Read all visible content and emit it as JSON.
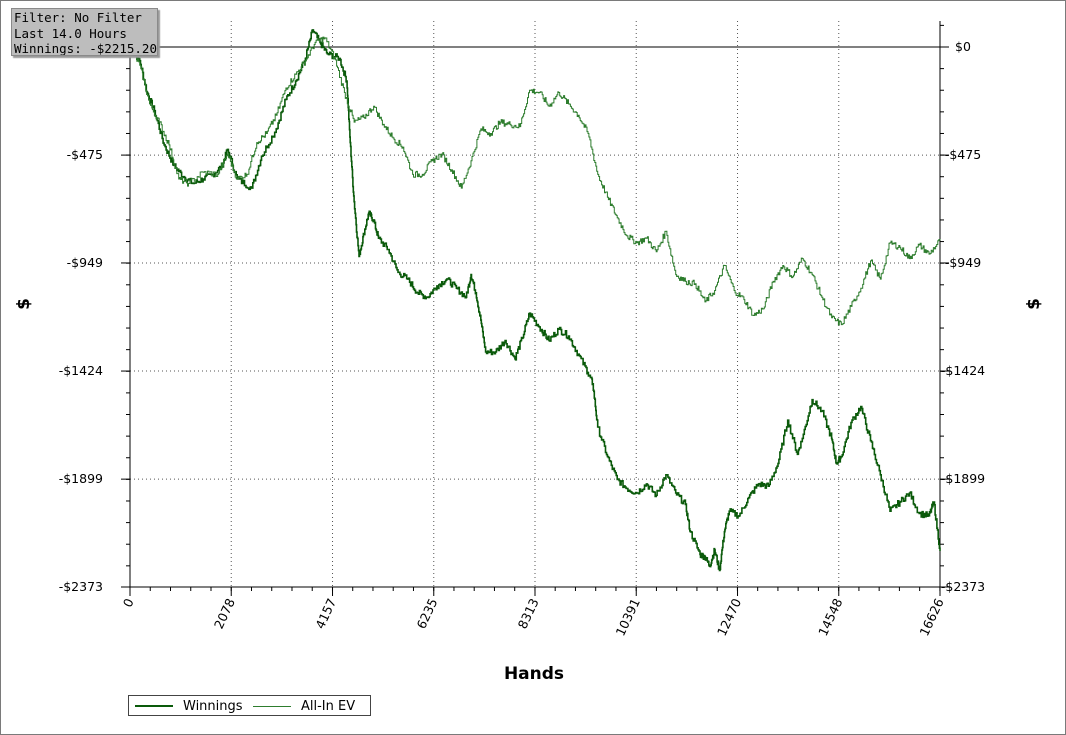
{
  "info_box": {
    "filter": "Filter: No Filter",
    "duration": "Last 14.0 Hours",
    "winnings": "Winnings: -$2215.20"
  },
  "chart_data": {
    "type": "line",
    "title": "",
    "xlabel": "Hands",
    "ylabel": "$",
    "xlim": [
      0,
      16626
    ],
    "ylim": [
      -2373,
      110
    ],
    "x_ticks": [
      "0",
      "2078",
      "4157",
      "6235",
      "8313",
      "10391",
      "12470",
      "14548",
      "16626"
    ],
    "x_tick_values": [
      0,
      2078,
      4157,
      6235,
      8313,
      10391,
      12470,
      14548,
      16626
    ],
    "y_ticks": [
      "$0",
      "-$475",
      "-$949",
      "-$1424",
      "-$1899",
      "-$2373"
    ],
    "y_tick_values": [
      0,
      -475,
      -949,
      -1424,
      -1899,
      -2373
    ],
    "grid": true,
    "legend_position": "bottom-left",
    "series": [
      {
        "name": "Winnings",
        "color": "#0a5a0a",
        "points": [
          [
            0,
            0
          ],
          [
            200,
            -60
          ],
          [
            350,
            -200
          ],
          [
            500,
            -280
          ],
          [
            700,
            -430
          ],
          [
            900,
            -520
          ],
          [
            1100,
            -570
          ],
          [
            1300,
            -600
          ],
          [
            1500,
            -580
          ],
          [
            1700,
            -560
          ],
          [
            1900,
            -520
          ],
          [
            2000,
            -450
          ],
          [
            2200,
            -580
          ],
          [
            2500,
            -620
          ],
          [
            2700,
            -480
          ],
          [
            3000,
            -360
          ],
          [
            3200,
            -230
          ],
          [
            3400,
            -150
          ],
          [
            3600,
            -50
          ],
          [
            3750,
            75
          ],
          [
            3900,
            20
          ],
          [
            4050,
            -30
          ],
          [
            4300,
            -50
          ],
          [
            4450,
            -150
          ],
          [
            4520,
            -420
          ],
          [
            4600,
            -680
          ],
          [
            4700,
            -920
          ],
          [
            4800,
            -820
          ],
          [
            4900,
            -730
          ],
          [
            5000,
            -760
          ],
          [
            5100,
            -840
          ],
          [
            5300,
            -890
          ],
          [
            5500,
            -990
          ],
          [
            5700,
            -1020
          ],
          [
            5900,
            -1080
          ],
          [
            6100,
            -1100
          ],
          [
            6300,
            -1050
          ],
          [
            6500,
            -1020
          ],
          [
            6700,
            -1060
          ],
          [
            6900,
            -1100
          ],
          [
            7000,
            -1000
          ],
          [
            7100,
            -1080
          ],
          [
            7200,
            -1200
          ],
          [
            7300,
            -1340
          ],
          [
            7500,
            -1340
          ],
          [
            7700,
            -1290
          ],
          [
            7900,
            -1370
          ],
          [
            8050,
            -1280
          ],
          [
            8200,
            -1170
          ],
          [
            8400,
            -1230
          ],
          [
            8600,
            -1290
          ],
          [
            8800,
            -1240
          ],
          [
            9000,
            -1270
          ],
          [
            9200,
            -1350
          ],
          [
            9400,
            -1430
          ],
          [
            9500,
            -1480
          ],
          [
            9600,
            -1670
          ],
          [
            9800,
            -1800
          ],
          [
            10000,
            -1900
          ],
          [
            10200,
            -1940
          ],
          [
            10400,
            -1960
          ],
          [
            10600,
            -1920
          ],
          [
            10800,
            -1970
          ],
          [
            11000,
            -1880
          ],
          [
            11200,
            -1960
          ],
          [
            11400,
            -2010
          ],
          [
            11500,
            -2130
          ],
          [
            11700,
            -2230
          ],
          [
            11800,
            -2240
          ],
          [
            11900,
            -2280
          ],
          [
            12000,
            -2210
          ],
          [
            12100,
            -2300
          ],
          [
            12200,
            -2130
          ],
          [
            12300,
            -2040
          ],
          [
            12500,
            -2060
          ],
          [
            12700,
            -1980
          ],
          [
            12900,
            -1920
          ],
          [
            13100,
            -1930
          ],
          [
            13300,
            -1830
          ],
          [
            13500,
            -1640
          ],
          [
            13700,
            -1790
          ],
          [
            13800,
            -1720
          ],
          [
            14000,
            -1550
          ],
          [
            14200,
            -1600
          ],
          [
            14400,
            -1720
          ],
          [
            14500,
            -1830
          ],
          [
            14600,
            -1800
          ],
          [
            14800,
            -1650
          ],
          [
            15000,
            -1580
          ],
          [
            15200,
            -1730
          ],
          [
            15400,
            -1880
          ],
          [
            15600,
            -2040
          ],
          [
            15800,
            -2000
          ],
          [
            16000,
            -1960
          ],
          [
            16200,
            -2050
          ],
          [
            16400,
            -2060
          ],
          [
            16500,
            -2000
          ],
          [
            16626,
            -2215
          ]
        ]
      },
      {
        "name": "All-In EV",
        "color": "#2e7d2e",
        "points": [
          [
            0,
            0
          ],
          [
            200,
            -80
          ],
          [
            400,
            -250
          ],
          [
            600,
            -330
          ],
          [
            800,
            -430
          ],
          [
            1000,
            -580
          ],
          [
            1200,
            -600
          ],
          [
            1500,
            -550
          ],
          [
            1800,
            -560
          ],
          [
            2000,
            -470
          ],
          [
            2200,
            -580
          ],
          [
            2400,
            -560
          ],
          [
            2600,
            -420
          ],
          [
            2800,
            -380
          ],
          [
            3000,
            -300
          ],
          [
            3200,
            -180
          ],
          [
            3400,
            -120
          ],
          [
            3600,
            -60
          ],
          [
            3800,
            20
          ],
          [
            4000,
            40
          ],
          [
            4200,
            -50
          ],
          [
            4400,
            -200
          ],
          [
            4600,
            -330
          ],
          [
            4800,
            -310
          ],
          [
            5000,
            -260
          ],
          [
            5200,
            -340
          ],
          [
            5400,
            -400
          ],
          [
            5600,
            -440
          ],
          [
            5800,
            -560
          ],
          [
            6000,
            -560
          ],
          [
            6200,
            -500
          ],
          [
            6400,
            -470
          ],
          [
            6600,
            -540
          ],
          [
            6800,
            -620
          ],
          [
            7000,
            -500
          ],
          [
            7200,
            -360
          ],
          [
            7400,
            -380
          ],
          [
            7600,
            -330
          ],
          [
            7800,
            -340
          ],
          [
            8000,
            -350
          ],
          [
            8200,
            -190
          ],
          [
            8400,
            -200
          ],
          [
            8600,
            -260
          ],
          [
            8800,
            -200
          ],
          [
            9000,
            -250
          ],
          [
            9200,
            -300
          ],
          [
            9400,
            -380
          ],
          [
            9600,
            -560
          ],
          [
            9800,
            -660
          ],
          [
            10000,
            -750
          ],
          [
            10200,
            -830
          ],
          [
            10400,
            -860
          ],
          [
            10600,
            -840
          ],
          [
            10800,
            -900
          ],
          [
            11000,
            -810
          ],
          [
            11200,
            -1000
          ],
          [
            11400,
            -1030
          ],
          [
            11600,
            -1040
          ],
          [
            11800,
            -1120
          ],
          [
            12000,
            -1070
          ],
          [
            12200,
            -960
          ],
          [
            12400,
            -1070
          ],
          [
            12600,
            -1110
          ],
          [
            12800,
            -1180
          ],
          [
            13000,
            -1150
          ],
          [
            13200,
            -1030
          ],
          [
            13400,
            -960
          ],
          [
            13600,
            -1010
          ],
          [
            13800,
            -930
          ],
          [
            14000,
            -1000
          ],
          [
            14200,
            -1100
          ],
          [
            14400,
            -1190
          ],
          [
            14600,
            -1220
          ],
          [
            14800,
            -1140
          ],
          [
            15000,
            -1060
          ],
          [
            15200,
            -940
          ],
          [
            15400,
            -1020
          ],
          [
            15600,
            -860
          ],
          [
            15800,
            -880
          ],
          [
            16000,
            -930
          ],
          [
            16200,
            -870
          ],
          [
            16400,
            -910
          ],
          [
            16626,
            -850
          ]
        ]
      }
    ]
  },
  "legend": {
    "items": [
      {
        "label": "Winnings",
        "color": "#0a5a0a"
      },
      {
        "label": "All-In EV",
        "color": "#2e7d2e"
      }
    ]
  }
}
